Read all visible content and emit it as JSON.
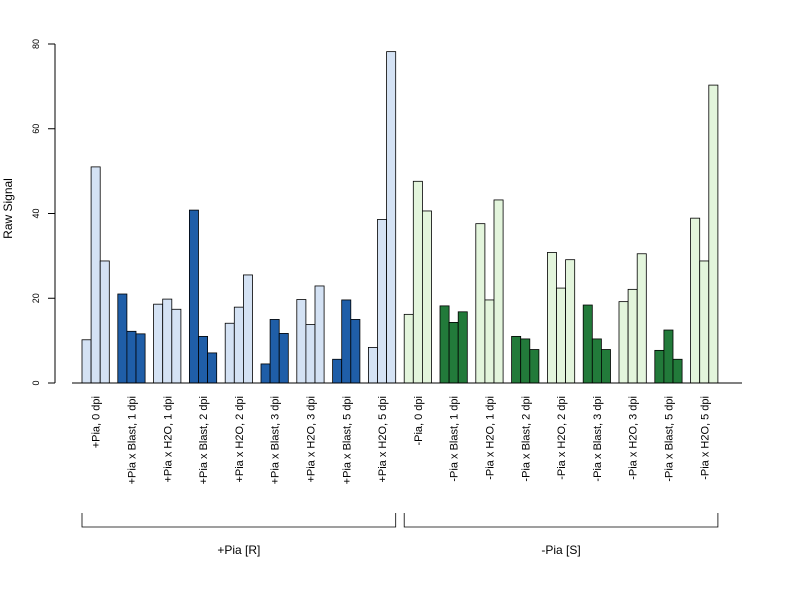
{
  "chart_data": {
    "type": "bar",
    "title": "",
    "xlabel": "",
    "ylabel": "Raw Signal",
    "ylim": [
      0,
      80
    ],
    "yticks": [
      0,
      20,
      40,
      60,
      80
    ],
    "yticks_text": [
      "0",
      "20",
      "40",
      "60",
      "80"
    ],
    "grid": false,
    "legend": "none",
    "bars_per_category": 3,
    "colors": {
      "R_light": "#d4e2f4",
      "R_dark": "#1f5ea8",
      "S_light": "#e3f5dc",
      "S_dark": "#227a3a",
      "edge": "#000000"
    },
    "categories": [
      {
        "label": "+Pia, 0 dpi",
        "values": [
          10.2,
          51,
          28.8
        ],
        "color": "R_light"
      },
      {
        "label": "+Pia x Blast, 1 dpi",
        "values": [
          21,
          12.2,
          11.6
        ],
        "color": "R_dark"
      },
      {
        "label": "+Pia x H2O, 1 dpi",
        "values": [
          18.6,
          19.8,
          17.4
        ],
        "color": "R_light"
      },
      {
        "label": "+Pia x Blast, 2 dpi",
        "values": [
          40.8,
          11,
          7.1
        ],
        "color": "R_dark"
      },
      {
        "label": "+Pia x H2O, 2 dpi",
        "values": [
          14.1,
          17.9,
          25.5
        ],
        "color": "R_light"
      },
      {
        "label": "+Pia x Blast, 3 dpi",
        "values": [
          4.5,
          15,
          11.7
        ],
        "color": "R_dark"
      },
      {
        "label": "+Pia x H2O, 3 dpi",
        "values": [
          19.7,
          13.8,
          22.9
        ],
        "color": "R_light"
      },
      {
        "label": "+Pia x Blast, 5 dpi",
        "values": [
          5.6,
          19.6,
          15
        ],
        "color": "R_dark"
      },
      {
        "label": "+Pia x H2O, 5 dpi",
        "values": [
          8.4,
          38.6,
          78.2
        ],
        "color": "R_light"
      },
      {
        "label": "-Pia, 0 dpi",
        "values": [
          16.2,
          47.6,
          40.6
        ],
        "color": "S_light"
      },
      {
        "label": "-Pia x Blast, 1 dpi",
        "values": [
          18.2,
          14.3,
          16.8
        ],
        "color": "S_dark"
      },
      {
        "label": "-Pia x H2O, 1 dpi",
        "values": [
          37.6,
          19.6,
          43.2
        ],
        "color": "S_light"
      },
      {
        "label": "-Pia x Blast, 2 dpi",
        "values": [
          11,
          10.4,
          7.9
        ],
        "color": "S_dark"
      },
      {
        "label": "-Pia x H2O, 2 dpi",
        "values": [
          30.8,
          22.4,
          29.1
        ],
        "color": "S_light"
      },
      {
        "label": "-Pia x Blast, 3 dpi",
        "values": [
          18.4,
          10.4,
          7.9
        ],
        "color": "S_dark"
      },
      {
        "label": "-Pia x H2O, 3 dpi",
        "values": [
          19.2,
          22.1,
          30.5
        ],
        "color": "S_light"
      },
      {
        "label": "-Pia x Blast, 5 dpi",
        "values": [
          7.7,
          12.5,
          5.6
        ],
        "color": "S_dark"
      },
      {
        "label": "-Pia x H2O, 5 dpi",
        "values": [
          38.9,
          28.8,
          70.3
        ],
        "color": "S_light"
      }
    ],
    "groups": [
      {
        "label": "+Pia [R]",
        "first_category": 0,
        "last_category": 8
      },
      {
        "label": "-Pia [S]",
        "first_category": 9,
        "last_category": 17
      }
    ]
  }
}
